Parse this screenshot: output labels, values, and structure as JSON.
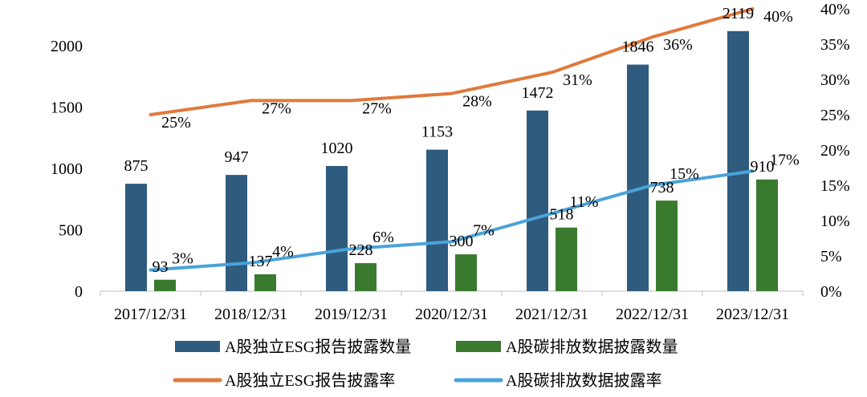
{
  "chart_data": {
    "type": "bar",
    "categories": [
      "2017/12/31",
      "2018/12/31",
      "2019/12/31",
      "2020/12/31",
      "2021/12/31",
      "2022/12/31",
      "2023/12/31"
    ],
    "series": [
      {
        "name": "A股独立ESG报告披露数量",
        "type": "bar",
        "axis": "left",
        "color": "#2E5B7E",
        "values": [
          875,
          947,
          1020,
          1153,
          1472,
          1846,
          2119
        ],
        "labels": [
          "875",
          "947",
          "1020",
          "1153",
          "1472",
          "1846",
          "2119"
        ]
      },
      {
        "name": "A股碳排放数据披露数量",
        "type": "bar",
        "axis": "left",
        "color": "#3A7A2F",
        "values": [
          93,
          137,
          228,
          300,
          518,
          738,
          910
        ],
        "labels": [
          "93",
          "137",
          "228",
          "300",
          "518",
          "738",
          "910"
        ]
      },
      {
        "name": "A股独立ESG报告披露率",
        "type": "line",
        "axis": "right",
        "color": "#E07A3C",
        "values": [
          25,
          27,
          27,
          28,
          31,
          36,
          40
        ],
        "labels": [
          "25%",
          "27%",
          "27%",
          "28%",
          "31%",
          "36%",
          "40%"
        ]
      },
      {
        "name": "A股碳排放数据披露率",
        "type": "line",
        "axis": "right",
        "color": "#4AA3DA",
        "values": [
          3,
          4,
          6,
          7,
          11,
          15,
          17
        ],
        "labels": [
          "3%",
          "4%",
          "6%",
          "7%",
          "11%",
          "15%",
          "17%"
        ]
      }
    ],
    "y_left": {
      "min": 0,
      "max": 2000,
      "ticks": [
        "0",
        "500",
        "1000",
        "1500",
        "2000"
      ],
      "tick_values": [
        0,
        500,
        1000,
        1500,
        2000
      ]
    },
    "y_right": {
      "min": 0,
      "max": 40,
      "ticks": [
        "0%",
        "5%",
        "10%",
        "15%",
        "20%",
        "25%",
        "30%",
        "35%",
        "40%"
      ],
      "tick_values": [
        0,
        5,
        10,
        15,
        20,
        25,
        30,
        35,
        40
      ]
    },
    "grid": false,
    "legend_position": "bottom"
  }
}
